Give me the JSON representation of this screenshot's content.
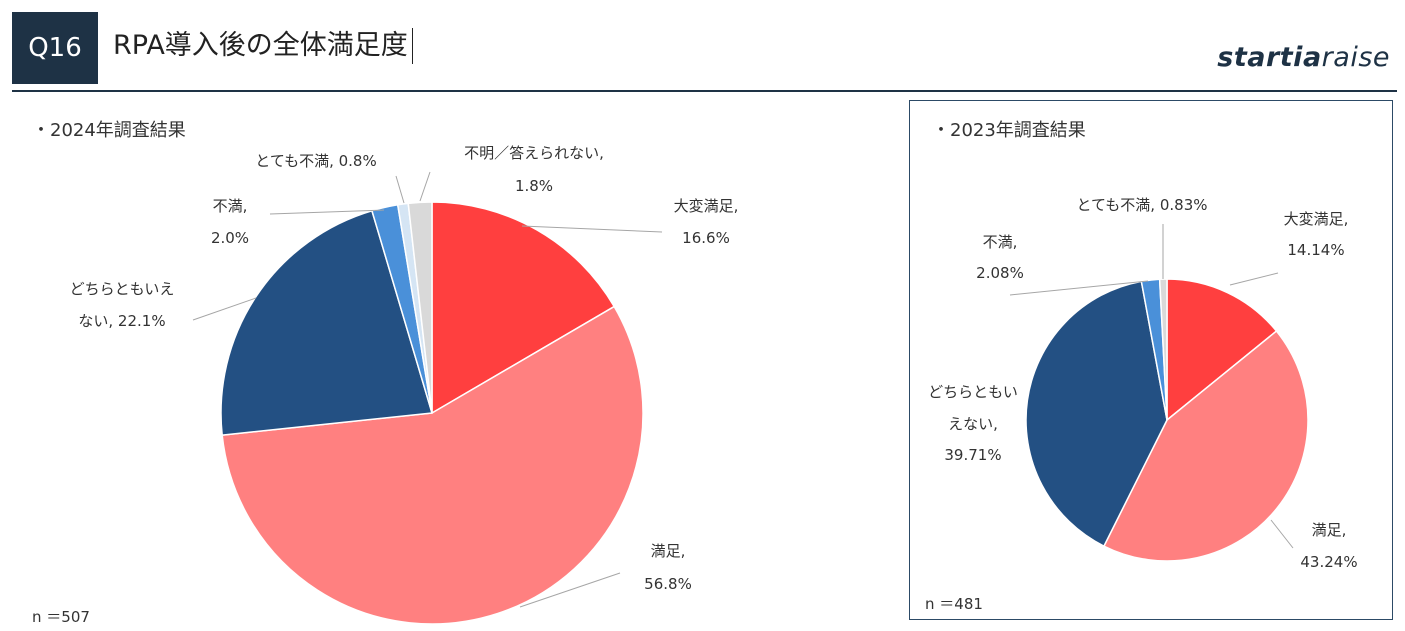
{
  "header": {
    "badge": "Q16",
    "title": "RPA導入後の全体満足度",
    "logo_bold": "startia",
    "logo_light": "raise"
  },
  "chart_data": [
    {
      "type": "pie",
      "title": "・2024年調査結果",
      "n_label": "n ＝507",
      "slices": [
        {
          "label": [
            "大変満足,",
            "16.6%"
          ],
          "value": 16.6,
          "color": "#ff3f3f"
        },
        {
          "label": [
            "満足,",
            "56.8%"
          ],
          "value": 56.8,
          "color": "#ff8080"
        },
        {
          "label": [
            "どちらともいえ",
            "ない, 22.1%"
          ],
          "value": 22.1,
          "color": "#235083"
        },
        {
          "label": [
            "不満,",
            "2.0%"
          ],
          "value": 2.0,
          "color": "#4a90d9"
        },
        {
          "label": [
            "とても不満, 0.8%"
          ],
          "value": 0.8,
          "color": "#d5e5f4"
        },
        {
          "label": [
            "不明／答えられない,",
            "1.8%"
          ],
          "value": 1.8,
          "color": "#d9d9d9"
        }
      ]
    },
    {
      "type": "pie",
      "title": "・2023年調査結果",
      "n_label": "n ＝481",
      "slices": [
        {
          "label": [
            "大変満足,",
            "14.14%"
          ],
          "value": 14.14,
          "color": "#ff3f3f"
        },
        {
          "label": [
            "満足,",
            "43.24%"
          ],
          "value": 43.24,
          "color": "#ff8080"
        },
        {
          "label": [
            "どちらともい",
            "えない,",
            "39.71%"
          ],
          "value": 39.71,
          "color": "#235083"
        },
        {
          "label": [
            "不満,",
            "2.08%"
          ],
          "value": 2.08,
          "color": "#4a90d9"
        },
        {
          "label": [
            "とても不満, 0.83%"
          ],
          "value": 0.83,
          "color": "#d9d9d9"
        }
      ]
    }
  ]
}
